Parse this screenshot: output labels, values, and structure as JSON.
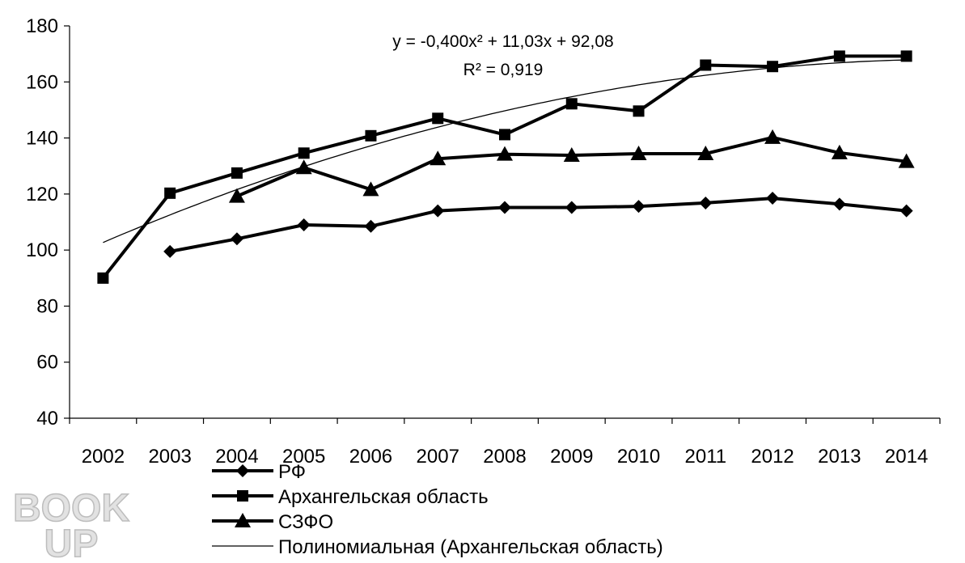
{
  "chart_data": {
    "type": "line",
    "title": "",
    "xlabel": "",
    "ylabel": "",
    "categories": [
      "2002",
      "2003",
      "2004",
      "2005",
      "2006",
      "2007",
      "2008",
      "2009",
      "2010",
      "2011",
      "2012",
      "2013",
      "2014"
    ],
    "ylim": [
      40,
      180
    ],
    "yticks": [
      40,
      60,
      80,
      100,
      120,
      140,
      160,
      180
    ],
    "grid": false,
    "legend_position": "bottom",
    "series": [
      {
        "name": "РФ",
        "marker": "diamond",
        "color": "#000000",
        "values": [
          null,
          99.5,
          104,
          109,
          108.5,
          114,
          115.2,
          115.2,
          115.6,
          116.8,
          118.5,
          116.4,
          114
        ]
      },
      {
        "name": "Архангельская область",
        "marker": "square",
        "color": "#000000",
        "values": [
          90,
          120.3,
          127.5,
          134.6,
          140.8,
          147,
          141.2,
          152.2,
          149.6,
          166,
          165.5,
          169.2,
          169.2
        ]
      },
      {
        "name": "СЗФО",
        "marker": "triangle",
        "color": "#000000",
        "values": [
          null,
          null,
          119.2,
          129.4,
          121.6,
          132.6,
          134.2,
          133.8,
          134.4,
          134.4,
          140.2,
          134.7,
          131.6
        ]
      }
    ],
    "trendline": {
      "name": "Полиномиальная (Архангельская область)",
      "type": "polynomial",
      "coefficients": {
        "a": -0.4,
        "b": 11.03,
        "c": 92.08
      },
      "equation": "y = -0,400x² + 11,03x + 92,08",
      "r_squared": "R² = 0,919"
    }
  },
  "watermark": {
    "text": "BOOK UP",
    "line1": "BOOK",
    "line2": "UP"
  }
}
